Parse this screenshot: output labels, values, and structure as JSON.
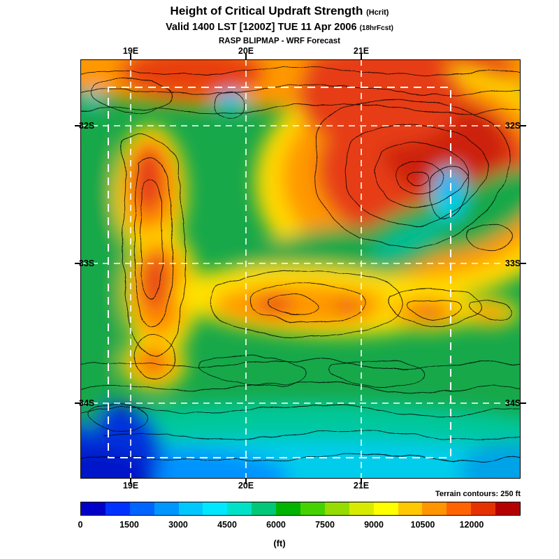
{
  "header": {
    "title": "Height of Critical Updraft Strength",
    "title_suffix": "(Hcrit)",
    "valid": "Valid 1400 LST [1200Z] TUE 11 Apr 2006",
    "valid_suffix": "(18hrFcst)",
    "model": "RASP BLIPMAP - WRF Forecast"
  },
  "map": {
    "x_ticks": [
      "19E",
      "20E",
      "21E"
    ],
    "y_ticks": [
      "32S",
      "33S",
      "34S"
    ],
    "note": "Terrain contours: 250 ft"
  },
  "colorbar": {
    "unit": "(ft)",
    "tick_labels": [
      "0",
      "1500",
      "3000",
      "4500",
      "6000",
      "7500",
      "9000",
      "10500",
      "12000"
    ],
    "colors": [
      "#0000c8",
      "#0032ff",
      "#0064ff",
      "#0096ff",
      "#00c8ff",
      "#00e8ff",
      "#00e2c8",
      "#00c878",
      "#00b400",
      "#46d200",
      "#96dc00",
      "#d7eb00",
      "#ffff00",
      "#ffc800",
      "#ff9600",
      "#ff6400",
      "#e63200",
      "#b40000"
    ]
  },
  "chart_data": {
    "type": "heatmap",
    "title": "Height of Critical Updraft Strength (Hcrit)",
    "valid": "Valid 1400 LST [1200Z] TUE 11 Apr 2006 (18hrFcst)",
    "source": "RASP BLIPMAP - WRF Forecast",
    "x_ticks": [
      "19E",
      "20E",
      "21E"
    ],
    "y_ticks": [
      "32S",
      "33S",
      "34S"
    ],
    "colorbar": {
      "unit": "ft",
      "min": 0,
      "max": 12000,
      "step": 1500
    },
    "annotation": "Terrain contours: 250 ft"
  }
}
